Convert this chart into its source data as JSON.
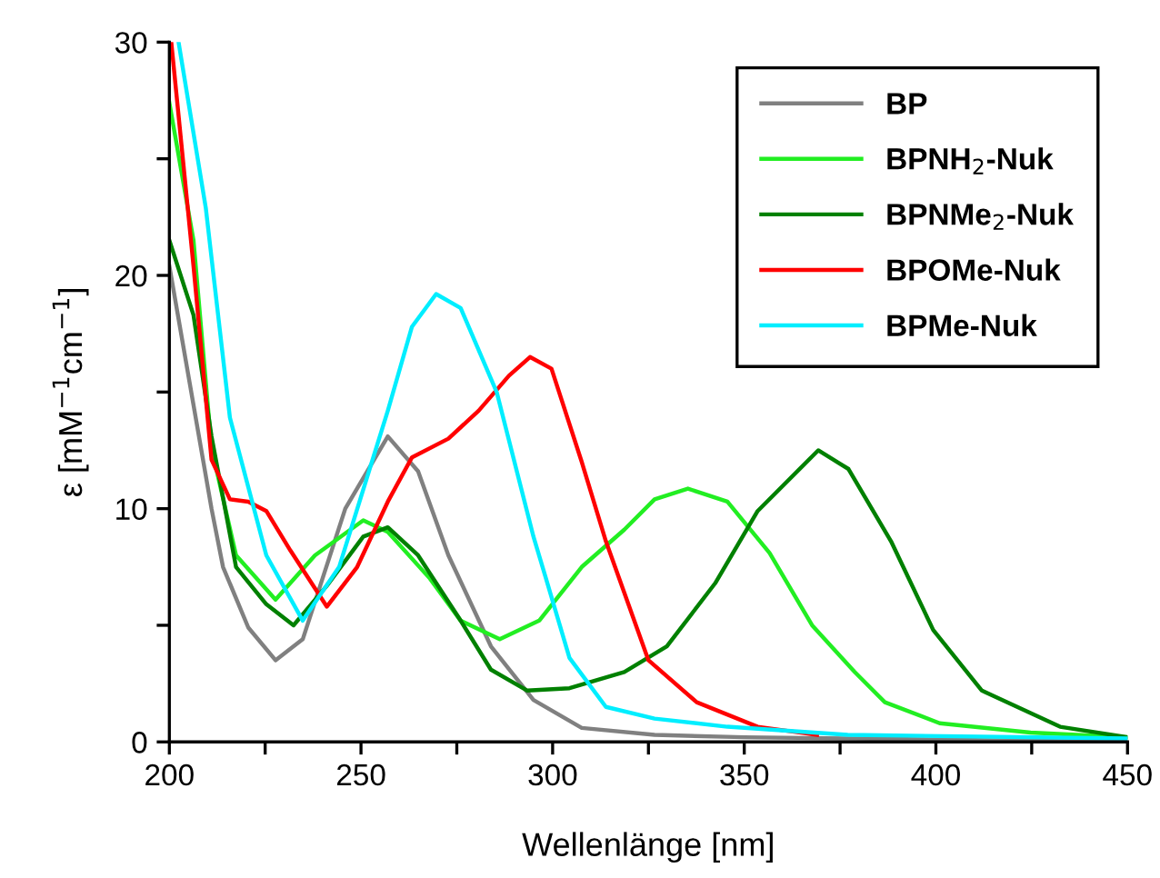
{
  "chart_data": {
    "type": "line",
    "xlabel": "Wellenlänge [nm]",
    "ylabel": "ε [mM$^{−1}$cm$^{−1}$]",
    "xlim": [
      200,
      450
    ],
    "ylim": [
      0,
      30
    ],
    "xticks": [
      200,
      {
        "value": 225,
        "label": null
      },
      250,
      {
        "value": 275,
        "label": null
      },
      300,
      {
        "value": 325,
        "label": null
      },
      350,
      {
        "value": 375,
        "label": null
      },
      400,
      {
        "value": 425,
        "label": null
      },
      450
    ],
    "yticks": [
      0,
      {
        "value": 5,
        "label": null
      },
      10,
      {
        "value": 15,
        "label": null
      },
      20,
      {
        "value": 25,
        "label": null
      },
      30
    ],
    "grid": false,
    "legend": "top right",
    "marker": "none",
    "line_style": "solid",
    "series": [
      {
        "name": "BP",
        "color": "#808080",
        "x": [
          200,
          211,
          214,
          220.6,
          227.7,
          234.8,
          245.9,
          257,
          264.9,
          272.8,
          283.9,
          295,
          307.6,
          326.6,
          350,
          400,
          450
        ],
        "values": [
          20.4,
          10,
          7.5,
          4.9,
          3.5,
          4.4,
          10,
          13.1,
          11.6,
          8,
          4.1,
          1.8,
          0.6,
          0.3,
          0.2,
          0.1,
          0
        ]
      },
      {
        "name": "BPNH$_{2}$-Nuk",
        "color": "#22ee22",
        "x": [
          200,
          206.3,
          211,
          217.4,
          227.7,
          238,
          250.6,
          257,
          268,
          276,
          286.2,
          296.5,
          307.6,
          318.7,
          326.6,
          335.3,
          345.6,
          356.6,
          367.7,
          378.8,
          386.7,
          401,
          424.7,
          450
        ],
        "values": [
          27.4,
          21.5,
          12.6,
          8,
          6.1,
          8,
          9.5,
          9,
          7,
          5.2,
          4.4,
          5.2,
          7.5,
          9.1,
          10.4,
          10.86,
          10.3,
          8.1,
          5,
          3,
          1.7,
          0.8,
          0.4,
          0.2
        ]
      },
      {
        "name": "BPNMe$_{2}$-Nuk",
        "color": "#008000",
        "x": [
          200,
          206.3,
          211,
          217.4,
          225.3,
          232.4,
          241.1,
          250.6,
          257,
          264.9,
          276,
          283.9,
          293.4,
          304.4,
          318.7,
          329.8,
          342.4,
          353.5,
          369.3,
          377.2,
          388.3,
          399.3,
          412,
          432.4,
          450
        ],
        "values": [
          21.5,
          18.3,
          13.1,
          7.5,
          5.9,
          5,
          6.7,
          8.8,
          9.2,
          8,
          5.2,
          3.1,
          2.2,
          2.3,
          3,
          4.1,
          6.8,
          9.9,
          12.5,
          11.7,
          8.6,
          4.8,
          2.2,
          0.65,
          0.2
        ]
      },
      {
        "name": "BPOMe-Nuk",
        "color": "#ff0000",
        "x": [
          200.5,
          206.3,
          211,
          215.8,
          220.6,
          225.3,
          231.6,
          241.1,
          249,
          257,
          263.3,
          272.8,
          280.7,
          288.6,
          294.1,
          299.7,
          307.6,
          313.9,
          325,
          337.6,
          353.5,
          369
        ],
        "values": [
          30,
          20.4,
          12.1,
          10.4,
          10.3,
          9.9,
          8.2,
          5.8,
          7.5,
          10.3,
          12.2,
          13,
          14.2,
          15.7,
          16.5,
          16,
          12,
          8.6,
          3.5,
          1.7,
          0.65,
          0.3
        ]
      },
      {
        "name": "BPMe-Nuk",
        "color": "#00eeff",
        "x": [
          202.4,
          209.5,
          215.8,
          225.3,
          234.8,
          244.3,
          257,
          263.3,
          269.6,
          276,
          285.4,
          295,
          298.1,
          304.4,
          313.9,
          326.6,
          345.6,
          377,
          450
        ],
        "values": [
          30,
          22.9,
          13.9,
          8,
          5.2,
          7.5,
          14.2,
          17.8,
          19.2,
          18.6,
          15,
          8.8,
          7.1,
          3.6,
          1.5,
          1,
          0.65,
          0.3,
          0.15
        ]
      }
    ]
  }
}
